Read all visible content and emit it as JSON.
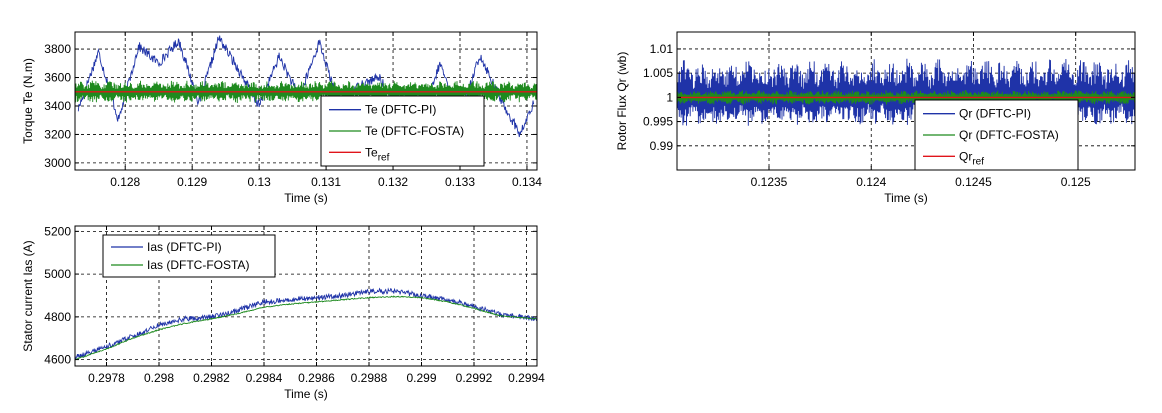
{
  "colors": {
    "dftc_pi": "#1f33a8",
    "dftc_fosta": "#1e8a1e",
    "reference": "#e0151b"
  },
  "chart_data": [
    {
      "id": "torque",
      "type": "line",
      "xlabel": "Time (s)",
      "ylabel": "Torque Te (N.m)",
      "xlim": [
        0.12725,
        0.13415
      ],
      "ylim": [
        2950,
        3920
      ],
      "xticks": [
        0.128,
        0.129,
        0.13,
        0.131,
        0.132,
        0.133,
        0.134
      ],
      "xtick_labels": [
        "0.128",
        "0.129",
        "0.13",
        "0.131",
        "0.132",
        "0.133",
        "0.134"
      ],
      "yticks": [
        3000,
        3200,
        3400,
        3600,
        3800
      ],
      "ytick_labels": [
        "3000",
        "3200",
        "3400",
        "3600",
        "3800"
      ],
      "grid": true,
      "legend_position": "bottom-right",
      "series": [
        {
          "name": "Te (DFTC-PI)",
          "color_key": "dftc_pi",
          "x": [
            0.1273,
            0.1276,
            0.1279,
            0.1282,
            0.1285,
            0.1288,
            0.1291,
            0.1294,
            0.1297,
            0.13,
            0.1303,
            0.1306,
            0.1309,
            0.1312,
            0.1315,
            0.1318,
            0.1321,
            0.1324,
            0.1327,
            0.133,
            0.1333,
            0.1336,
            0.1339,
            0.1341
          ],
          "y": [
            3380,
            3780,
            3300,
            3820,
            3700,
            3860,
            3420,
            3880,
            3650,
            3400,
            3750,
            3460,
            3850,
            3380,
            3550,
            3600,
            3320,
            3250,
            3700,
            3320,
            3760,
            3450,
            3200,
            3420
          ]
        },
        {
          "name": "Te (DFTC-FOSTA)",
          "color_key": "dftc_fosta",
          "x": [
            0.12725,
            0.13415
          ],
          "y": [
            3500,
            3500
          ],
          "band": [
            3420,
            3580
          ]
        },
        {
          "name": "Te_ref",
          "color_key": "reference",
          "x": [
            0.12725,
            0.13415
          ],
          "y": [
            3500,
            3500
          ]
        }
      ]
    },
    {
      "id": "flux",
      "type": "line",
      "xlabel": "Time (s)",
      "ylabel": "Rotor Flux Qr (wb)",
      "xlim": [
        0.12305,
        0.12529
      ],
      "ylim": [
        0.985,
        1.0135
      ],
      "xticks": [
        0.1235,
        0.124,
        0.1245,
        0.125
      ],
      "xtick_labels": [
        "0.1235",
        "0.124",
        "0.1245",
        "0.125"
      ],
      "yticks": [
        0.99,
        0.995,
        1,
        1.005,
        1.01
      ],
      "ytick_labels": [
        "0.99",
        "0.995",
        "1",
        "1.005",
        "1.01"
      ],
      "grid": true,
      "legend_position": "bottom-right",
      "series": [
        {
          "name": "Qr (DFTC-PI)",
          "color_key": "dftc_pi",
          "x": [
            0.12305,
            0.1233,
            0.1236,
            0.1239,
            0.1242,
            0.1245,
            0.1248,
            0.1251,
            0.12529
          ],
          "y": [
            1.0,
            1.0,
            1.0,
            1.0,
            1.0,
            1.0,
            1.0,
            1.0,
            1.0
          ],
          "band": [
            0.994,
            1.008
          ]
        },
        {
          "name": "Qr (DFTC-FOSTA)",
          "color_key": "dftc_fosta",
          "x": [
            0.12305,
            0.12529
          ],
          "y": [
            1.0,
            1.0
          ],
          "band": [
            0.9985,
            1.0015
          ]
        },
        {
          "name": "Qr_ref",
          "color_key": "reference",
          "x": [
            0.12305,
            0.12529
          ],
          "y": [
            1.0,
            1.0
          ]
        }
      ]
    },
    {
      "id": "current",
      "type": "line",
      "xlabel": "Time (s)",
      "ylabel": "Stator current Ias (A)",
      "xlim": [
        0.29768,
        0.29944
      ],
      "ylim": [
        4570,
        5225
      ],
      "xticks": [
        0.2978,
        0.298,
        0.2982,
        0.2984,
        0.2986,
        0.2988,
        0.299,
        0.2992,
        0.2994
      ],
      "xtick_labels": [
        "0.2978",
        "0.298",
        "0.2982",
        "0.2984",
        "0.2986",
        "0.2988",
        "0.299",
        "0.2992",
        "0.2994"
      ],
      "yticks": [
        4600,
        4800,
        5000,
        5200
      ],
      "ytick_labels": [
        "4600",
        "4800",
        "5000",
        "5200"
      ],
      "grid": true,
      "legend_position": "top-left",
      "series": [
        {
          "name": "Ias (DFTC-PI)",
          "color_key": "dftc_pi",
          "x": [
            0.29768,
            0.2978,
            0.2979,
            0.298,
            0.2981,
            0.2982,
            0.2983,
            0.2984,
            0.2985,
            0.2986,
            0.2987,
            0.2988,
            0.2989,
            0.299,
            0.2991,
            0.2992,
            0.2993,
            0.29944
          ],
          "y": [
            4610,
            4660,
            4710,
            4760,
            4790,
            4800,
            4830,
            4870,
            4880,
            4890,
            4900,
            4920,
            4920,
            4900,
            4880,
            4850,
            4810,
            4790
          ]
        },
        {
          "name": "Ias (DFTC-FOSTA)",
          "color_key": "dftc_fosta",
          "x": [
            0.29768,
            0.2978,
            0.2979,
            0.298,
            0.2981,
            0.2982,
            0.2983,
            0.2984,
            0.2985,
            0.2986,
            0.2987,
            0.2988,
            0.2989,
            0.299,
            0.2991,
            0.2992,
            0.2993,
            0.29944
          ],
          "y": [
            4600,
            4650,
            4700,
            4740,
            4770,
            4790,
            4815,
            4845,
            4860,
            4870,
            4880,
            4890,
            4895,
            4890,
            4870,
            4840,
            4805,
            4790
          ]
        }
      ]
    }
  ]
}
